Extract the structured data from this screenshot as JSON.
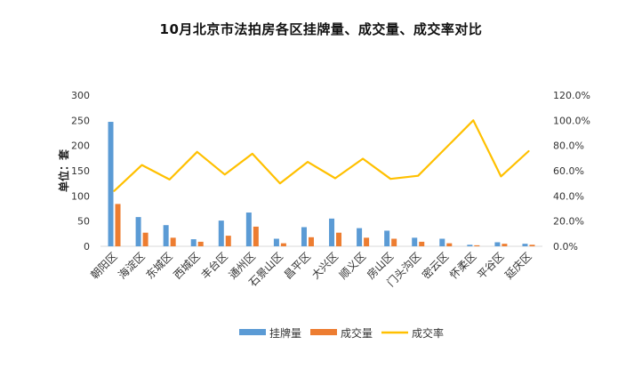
{
  "chart_data": {
    "type": "bar",
    "title": "10月北京市法拍房各区挂牌量、成交量、成交率对比",
    "ylabel": "单位：套",
    "xlabel": "",
    "ylim": [
      0,
      300
    ],
    "y_ticks": [
      "0",
      "50",
      "100",
      "150",
      "200",
      "250",
      "300"
    ],
    "y2lim": [
      0,
      1.2
    ],
    "y2_ticks": [
      "0.0%",
      "20.0%",
      "40.0%",
      "60.0%",
      "80.0%",
      "100.0%",
      "120.0%"
    ],
    "grid": false,
    "legend_position": "bottom",
    "categories": [
      "朝阳区",
      "海淀区",
      "东城区",
      "西城区",
      "丰台区",
      "通州区",
      "石景山区",
      "昌平区",
      "大兴区",
      "顺义区",
      "房山区",
      "门头沟区",
      "密云区",
      "怀柔区",
      "平谷区",
      "延庆区"
    ],
    "series": [
      {
        "name": "挂牌量",
        "type": "bar",
        "axis": "left",
        "color": "#5b9bd5",
        "values": [
          247,
          58,
          42,
          14,
          51,
          67,
          15,
          38,
          55,
          36,
          31,
          17,
          15,
          3,
          8,
          5
        ]
      },
      {
        "name": "成交量",
        "type": "bar",
        "axis": "left",
        "color": "#ed7d31",
        "values": [
          84,
          27,
          17,
          9,
          21,
          39,
          6,
          18,
          27,
          17,
          15,
          9,
          6,
          2,
          5,
          3
        ]
      },
      {
        "name": "成交率",
        "type": "line",
        "axis": "right",
        "color": "#ffc000",
        "values": [
          0.44,
          0.645,
          0.53,
          0.75,
          0.57,
          0.735,
          0.5,
          0.67,
          0.54,
          0.695,
          0.535,
          0.56,
          0.78,
          1.0,
          0.555,
          0.755
        ]
      }
    ]
  }
}
